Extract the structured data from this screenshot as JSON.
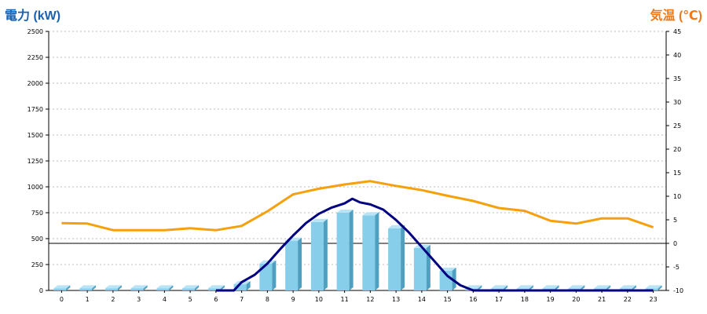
{
  "chart_data": {
    "type": "bar",
    "title": "",
    "xlabel": "",
    "ylabel_left": "電力 (kW)",
    "ylabel_right": "気温 (℃)",
    "categories": [
      "0",
      "1",
      "2",
      "3",
      "4",
      "5",
      "6",
      "7",
      "8",
      "9",
      "10",
      "11",
      "12",
      "13",
      "14",
      "15",
      "16",
      "17",
      "18",
      "19",
      "20",
      "21",
      "22",
      "23"
    ],
    "ylim_left": [
      0,
      2500
    ],
    "yticks_left": [
      0,
      250,
      500,
      750,
      1000,
      1250,
      1500,
      1750,
      2000,
      2250,
      2500
    ],
    "ylim_right": [
      -10,
      45
    ],
    "yticks_right": [
      -10,
      -5,
      0,
      5,
      10,
      15,
      20,
      25,
      30,
      35,
      40,
      45
    ],
    "grid": true,
    "series": [
      {
        "type": "bar",
        "axis": "left",
        "color": "#87ceeb",
        "values": [
          20,
          20,
          20,
          20,
          20,
          20,
          20,
          60,
          260,
          480,
          660,
          750,
          725,
          600,
          410,
          190,
          20,
          20,
          20,
          20,
          20,
          20,
          20,
          20
        ]
      },
      {
        "type": "line",
        "axis": "left",
        "color": "#000080",
        "x": [
          6,
          6.7,
          7,
          7.5,
          8,
          8.5,
          9,
          9.5,
          10,
          10.5,
          11,
          11.3,
          11.6,
          12,
          12.5,
          13,
          13.5,
          14,
          14.5,
          15,
          15.5,
          16,
          23
        ],
        "values": [
          0,
          0,
          80,
          150,
          260,
          400,
          530,
          650,
          740,
          800,
          840,
          885,
          850,
          830,
          780,
          680,
          560,
          420,
          280,
          140,
          50,
          0,
          0
        ]
      },
      {
        "type": "line",
        "axis": "right",
        "color": "#f5a00f",
        "values": [
          4.3,
          4.2,
          2.8,
          2.8,
          2.8,
          3.2,
          2.8,
          3.7,
          6.8,
          10.4,
          11.6,
          12.5,
          13.2,
          12.2,
          11.3,
          10.1,
          9.0,
          7.5,
          6.9,
          4.8,
          4.2,
          5.3,
          5.3,
          3.4
        ]
      }
    ]
  }
}
